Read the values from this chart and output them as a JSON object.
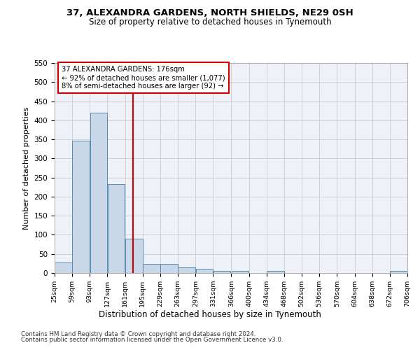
{
  "title1": "37, ALEXANDRA GARDENS, NORTH SHIELDS, NE29 0SH",
  "title2": "Size of property relative to detached houses in Tynemouth",
  "xlabel": "Distribution of detached houses by size in Tynemouth",
  "ylabel": "Number of detached properties",
  "annotation_line1": "37 ALEXANDRA GARDENS: 176sqm",
  "annotation_line2": "← 92% of detached houses are smaller (1,077)",
  "annotation_line3": "8% of semi-detached houses are larger (92) →",
  "property_size": 176,
  "bin_edges": [
    25,
    59,
    93,
    127,
    161,
    195,
    229,
    263,
    297,
    331,
    366,
    400,
    434,
    468,
    502,
    536,
    570,
    604,
    638,
    672,
    706
  ],
  "bar_heights": [
    27,
    347,
    419,
    233,
    90,
    24,
    24,
    14,
    11,
    6,
    5,
    0,
    5,
    0,
    0,
    0,
    0,
    0,
    0,
    5
  ],
  "bar_color": "#c8d8e8",
  "bar_edgecolor": "#5a8ab0",
  "bar_linewidth": 0.7,
  "vline_color": "#cc0000",
  "vline_x": 176,
  "ylim": [
    0,
    550
  ],
  "yticks": [
    0,
    50,
    100,
    150,
    200,
    250,
    300,
    350,
    400,
    450,
    500,
    550
  ],
  "grid_color": "#cccccc",
  "background_color": "#eef2f8",
  "annotation_box_color": "#ffffff",
  "annotation_box_edgecolor": "#cc0000",
  "footer_line1": "Contains HM Land Registry data © Crown copyright and database right 2024.",
  "footer_line2": "Contains public sector information licensed under the Open Government Licence v3.0."
}
